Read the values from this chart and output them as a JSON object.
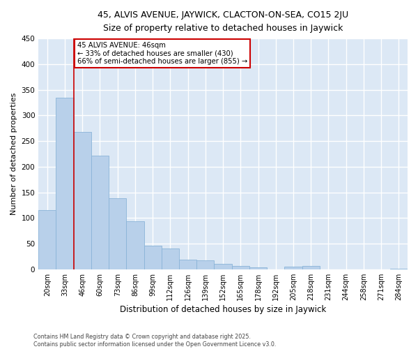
{
  "title1": "45, ALVIS AVENUE, JAYWICK, CLACTON-ON-SEA, CO15 2JU",
  "title2": "Size of property relative to detached houses in Jaywick",
  "xlabel": "Distribution of detached houses by size in Jaywick",
  "ylabel": "Number of detached properties",
  "categories": [
    "20sqm",
    "33sqm",
    "46sqm",
    "60sqm",
    "73sqm",
    "86sqm",
    "99sqm",
    "112sqm",
    "126sqm",
    "139sqm",
    "152sqm",
    "165sqm",
    "178sqm",
    "192sqm",
    "205sqm",
    "218sqm",
    "231sqm",
    "244sqm",
    "258sqm",
    "271sqm",
    "284sqm"
  ],
  "values": [
    116,
    335,
    268,
    222,
    138,
    93,
    46,
    40,
    19,
    18,
    10,
    6,
    4,
    0,
    5,
    6,
    0,
    0,
    0,
    0,
    1
  ],
  "bar_color": "#b8d0ea",
  "bar_edge_color": "#8ab4d8",
  "vline_x_index": 1.5,
  "annotation_text_line1": "45 ALVIS AVENUE: 46sqm",
  "annotation_text_line2": "← 33% of detached houses are smaller (430)",
  "annotation_text_line3": "66% of semi-detached houses are larger (855) →",
  "vline_color": "#cc0000",
  "plot_bg_color": "#dce8f5",
  "fig_bg_color": "#ffffff",
  "grid_color": "#ffffff",
  "footer1": "Contains HM Land Registry data © Crown copyright and database right 2025.",
  "footer2": "Contains public sector information licensed under the Open Government Licence v3.0.",
  "ylim": [
    0,
    450
  ],
  "yticks": [
    0,
    50,
    100,
    150,
    200,
    250,
    300,
    350,
    400,
    450
  ]
}
